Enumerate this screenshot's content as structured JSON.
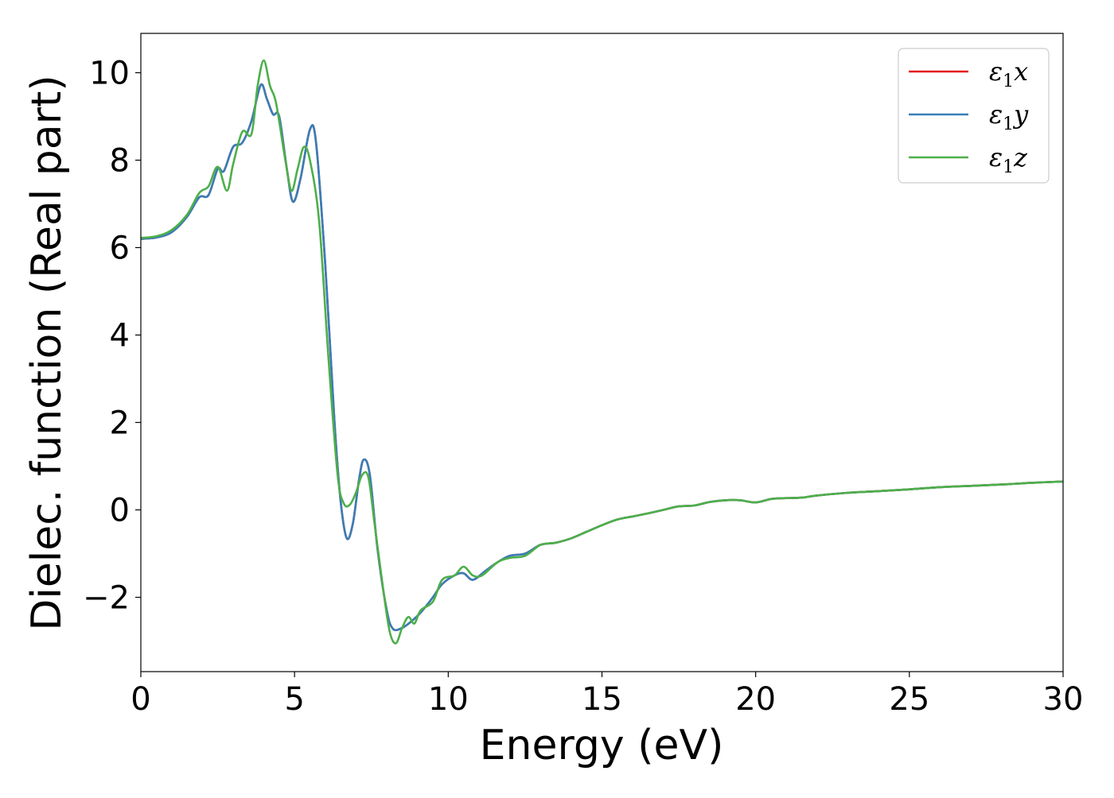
{
  "chart_data": {
    "type": "line",
    "title": "",
    "xlabel": "Energy (eV)",
    "ylabel": "Dielec. function (Real part)",
    "xlim": [
      0,
      30
    ],
    "ylim": [
      -3.7,
      10.9
    ],
    "x_ticks": [
      0,
      5,
      10,
      15,
      20,
      25,
      30
    ],
    "y_ticks": [
      -2,
      0,
      2,
      4,
      6,
      8,
      10
    ],
    "x_tick_labels": [
      "0",
      "5",
      "10",
      "15",
      "20",
      "25",
      "30"
    ],
    "y_tick_labels": [
      "−2",
      "0",
      "2",
      "4",
      "6",
      "8",
      "10"
    ],
    "grid": false,
    "legend": {
      "position": "top-right"
    },
    "series": [
      {
        "name": "ε₁x",
        "label_base": "ε",
        "label_sub": "1",
        "label_var": "x",
        "color": "#e41a1c",
        "points": [
          [
            0,
            6.2
          ],
          [
            0.5,
            6.23
          ],
          [
            1,
            6.35
          ],
          [
            1.5,
            6.7
          ],
          [
            1.9,
            7.15
          ],
          [
            2.2,
            7.2
          ],
          [
            2.5,
            7.8
          ],
          [
            2.7,
            7.75
          ],
          [
            3.0,
            8.3
          ],
          [
            3.3,
            8.4
          ],
          [
            3.6,
            8.9
          ],
          [
            3.9,
            9.72
          ],
          [
            4.1,
            9.4
          ],
          [
            4.3,
            9.05
          ],
          [
            4.5,
            9.0
          ],
          [
            4.75,
            7.8
          ],
          [
            4.95,
            7.05
          ],
          [
            5.2,
            7.6
          ],
          [
            5.5,
            8.7
          ],
          [
            5.7,
            8.4
          ],
          [
            6.0,
            5.6
          ],
          [
            6.3,
            2.0
          ],
          [
            6.5,
            0.2
          ],
          [
            6.7,
            -0.65
          ],
          [
            6.9,
            -0.3
          ],
          [
            7.1,
            0.7
          ],
          [
            7.25,
            1.15
          ],
          [
            7.45,
            0.8
          ],
          [
            7.7,
            -0.9
          ],
          [
            8.0,
            -2.3
          ],
          [
            8.2,
            -2.72
          ],
          [
            8.5,
            -2.7
          ],
          [
            8.8,
            -2.55
          ],
          [
            9.1,
            -2.35
          ],
          [
            9.5,
            -2.0
          ],
          [
            9.8,
            -1.7
          ],
          [
            10.2,
            -1.5
          ],
          [
            10.5,
            -1.45
          ],
          [
            10.8,
            -1.6
          ],
          [
            11.2,
            -1.4
          ],
          [
            11.6,
            -1.2
          ],
          [
            12.0,
            -1.05
          ],
          [
            12.5,
            -1.0
          ],
          [
            13.0,
            -0.8
          ],
          [
            13.5,
            -0.75
          ],
          [
            14.0,
            -0.65
          ],
          [
            14.5,
            -0.5
          ],
          [
            15.0,
            -0.35
          ],
          [
            15.5,
            -0.22
          ],
          [
            16.0,
            -0.15
          ],
          [
            16.5,
            -0.08
          ],
          [
            17.0,
            0.0
          ],
          [
            17.5,
            0.08
          ],
          [
            18.0,
            0.1
          ],
          [
            18.5,
            0.18
          ],
          [
            19.0,
            0.22
          ],
          [
            19.5,
            0.22
          ],
          [
            20.0,
            0.17
          ],
          [
            20.5,
            0.25
          ],
          [
            21.0,
            0.27
          ],
          [
            21.5,
            0.28
          ],
          [
            22.0,
            0.33
          ],
          [
            23.0,
            0.39
          ],
          [
            24.0,
            0.43
          ],
          [
            25.0,
            0.47
          ],
          [
            26.0,
            0.52
          ],
          [
            27.0,
            0.55
          ],
          [
            28.0,
            0.58
          ],
          [
            29.0,
            0.62
          ],
          [
            30.0,
            0.65
          ]
        ]
      },
      {
        "name": "ε₁y",
        "label_base": "ε",
        "label_sub": "1",
        "label_var": "y",
        "color": "#377eb8",
        "points": [
          [
            0,
            6.2
          ],
          [
            0.5,
            6.23
          ],
          [
            1,
            6.35
          ],
          [
            1.5,
            6.7
          ],
          [
            1.9,
            7.15
          ],
          [
            2.2,
            7.2
          ],
          [
            2.5,
            7.8
          ],
          [
            2.7,
            7.75
          ],
          [
            3.0,
            8.3
          ],
          [
            3.3,
            8.4
          ],
          [
            3.6,
            8.9
          ],
          [
            3.9,
            9.72
          ],
          [
            4.1,
            9.4
          ],
          [
            4.3,
            9.05
          ],
          [
            4.5,
            9.0
          ],
          [
            4.75,
            7.8
          ],
          [
            4.95,
            7.05
          ],
          [
            5.2,
            7.6
          ],
          [
            5.5,
            8.7
          ],
          [
            5.7,
            8.4
          ],
          [
            6.0,
            5.6
          ],
          [
            6.3,
            2.0
          ],
          [
            6.5,
            0.2
          ],
          [
            6.7,
            -0.65
          ],
          [
            6.9,
            -0.3
          ],
          [
            7.1,
            0.7
          ],
          [
            7.25,
            1.15
          ],
          [
            7.45,
            0.8
          ],
          [
            7.7,
            -0.9
          ],
          [
            8.0,
            -2.3
          ],
          [
            8.2,
            -2.72
          ],
          [
            8.5,
            -2.7
          ],
          [
            8.8,
            -2.55
          ],
          [
            9.1,
            -2.35
          ],
          [
            9.5,
            -2.0
          ],
          [
            9.8,
            -1.7
          ],
          [
            10.2,
            -1.5
          ],
          [
            10.5,
            -1.45
          ],
          [
            10.8,
            -1.6
          ],
          [
            11.2,
            -1.4
          ],
          [
            11.6,
            -1.2
          ],
          [
            12.0,
            -1.05
          ],
          [
            12.5,
            -1.0
          ],
          [
            13.0,
            -0.8
          ],
          [
            13.5,
            -0.75
          ],
          [
            14.0,
            -0.65
          ],
          [
            14.5,
            -0.5
          ],
          [
            15.0,
            -0.35
          ],
          [
            15.5,
            -0.22
          ],
          [
            16.0,
            -0.15
          ],
          [
            16.5,
            -0.08
          ],
          [
            17.0,
            0.0
          ],
          [
            17.5,
            0.08
          ],
          [
            18.0,
            0.1
          ],
          [
            18.5,
            0.18
          ],
          [
            19.0,
            0.22
          ],
          [
            19.5,
            0.22
          ],
          [
            20.0,
            0.17
          ],
          [
            20.5,
            0.25
          ],
          [
            21.0,
            0.27
          ],
          [
            21.5,
            0.28
          ],
          [
            22.0,
            0.33
          ],
          [
            23.0,
            0.39
          ],
          [
            24.0,
            0.43
          ],
          [
            25.0,
            0.47
          ],
          [
            26.0,
            0.52
          ],
          [
            27.0,
            0.55
          ],
          [
            28.0,
            0.58
          ],
          [
            29.0,
            0.62
          ],
          [
            30.0,
            0.65
          ]
        ]
      },
      {
        "name": "ε₁z",
        "label_base": "ε",
        "label_sub": "1",
        "label_var": "z",
        "color": "#4daf4a",
        "points": [
          [
            0,
            6.22
          ],
          [
            0.5,
            6.26
          ],
          [
            1,
            6.4
          ],
          [
            1.5,
            6.75
          ],
          [
            1.9,
            7.25
          ],
          [
            2.2,
            7.4
          ],
          [
            2.5,
            7.85
          ],
          [
            2.8,
            7.3
          ],
          [
            3.0,
            7.9
          ],
          [
            3.3,
            8.65
          ],
          [
            3.6,
            8.6
          ],
          [
            3.8,
            9.7
          ],
          [
            4.0,
            10.28
          ],
          [
            4.2,
            9.7
          ],
          [
            4.4,
            9.3
          ],
          [
            4.7,
            8.0
          ],
          [
            4.9,
            7.3
          ],
          [
            5.1,
            7.8
          ],
          [
            5.3,
            8.3
          ],
          [
            5.5,
            8.0
          ],
          [
            5.8,
            6.6
          ],
          [
            6.1,
            3.5
          ],
          [
            6.4,
            0.8
          ],
          [
            6.6,
            0.15
          ],
          [
            6.8,
            0.12
          ],
          [
            7.0,
            0.4
          ],
          [
            7.2,
            0.8
          ],
          [
            7.4,
            0.75
          ],
          [
            7.6,
            -0.3
          ],
          [
            7.9,
            -1.9
          ],
          [
            8.1,
            -2.8
          ],
          [
            8.3,
            -3.05
          ],
          [
            8.5,
            -2.7
          ],
          [
            8.7,
            -2.45
          ],
          [
            8.9,
            -2.6
          ],
          [
            9.1,
            -2.3
          ],
          [
            9.5,
            -2.1
          ],
          [
            9.8,
            -1.6
          ],
          [
            10.2,
            -1.5
          ],
          [
            10.5,
            -1.3
          ],
          [
            10.8,
            -1.5
          ],
          [
            11.1,
            -1.5
          ],
          [
            11.6,
            -1.2
          ],
          [
            12.0,
            -1.1
          ],
          [
            12.5,
            -1.05
          ],
          [
            13.0,
            -0.8
          ],
          [
            13.5,
            -0.75
          ],
          [
            14.0,
            -0.65
          ],
          [
            14.5,
            -0.5
          ],
          [
            15.0,
            -0.35
          ],
          [
            15.5,
            -0.22
          ],
          [
            16.0,
            -0.15
          ],
          [
            16.5,
            -0.08
          ],
          [
            17.0,
            0.0
          ],
          [
            17.5,
            0.08
          ],
          [
            18.0,
            0.1
          ],
          [
            18.5,
            0.18
          ],
          [
            19.0,
            0.22
          ],
          [
            19.5,
            0.22
          ],
          [
            20.0,
            0.17
          ],
          [
            20.5,
            0.25
          ],
          [
            21.0,
            0.27
          ],
          [
            21.5,
            0.28
          ],
          [
            22.0,
            0.33
          ],
          [
            23.0,
            0.39
          ],
          [
            24.0,
            0.43
          ],
          [
            25.0,
            0.47
          ],
          [
            26.0,
            0.52
          ],
          [
            27.0,
            0.55
          ],
          [
            28.0,
            0.58
          ],
          [
            29.0,
            0.62
          ],
          [
            30.0,
            0.65
          ]
        ]
      }
    ]
  }
}
